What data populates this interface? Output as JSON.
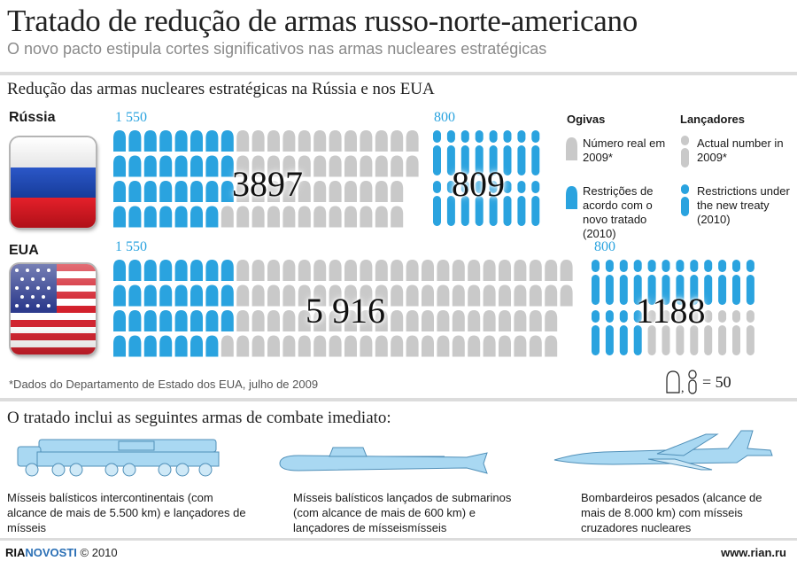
{
  "title": "Tratado de redução de armas russo-norte-americano",
  "subtitle": "O novo pacto estipula cortes significativos nas armas nucleares estratégicas",
  "section1_title": "Redução das armas nucleares estratégicas na Rússia e nos EUA",
  "russia": {
    "label": "Rússia",
    "warheads_limit_label": "1 550",
    "warheads_actual_label": "3897",
    "launchers_limit_label": "800",
    "launchers_actual_label": "809",
    "warheads_limit": 1550,
    "warheads_actual": 3897,
    "launchers_limit": 800,
    "launchers_actual": 809
  },
  "usa": {
    "label": "EUA",
    "warheads_limit_label": "1 550",
    "warheads_actual_label": "5 916",
    "launchers_limit_label": "800",
    "launchers_actual_label": "1188",
    "warheads_limit": 1550,
    "warheads_actual": 5916,
    "launchers_limit": 800,
    "launchers_actual": 1188
  },
  "legend": {
    "warheads_title": "Ogivas",
    "launchers_title": "Lançadores",
    "actual_pt": "Número real em 2009*",
    "limit_pt": "Restrições de acordo com o novo tratado (2010)",
    "actual_en": "Actual number in 2009*",
    "limit_en": "Restrictions under the new treaty (2010)",
    "scale": "= 50"
  },
  "footnote": "*Dados do Departamento de Estado dos EUA, julho de 2009",
  "section2_title": "O tratado inclui as seguintes armas de combate imediato:",
  "weapons": [
    {
      "icon": "missile-launcher-truck-icon",
      "description": "Mísseis balísticos intercontinentais (com alcance de mais de 5.500 km) e lançadores de mísseis"
    },
    {
      "icon": "submarine-icon",
      "description": "Mísseis balísticos lançados de submarinos (com alcance de mais de 600 km) e lançadores de mísseismísseis"
    },
    {
      "icon": "bomber-plane-icon",
      "description": "Bombardeiros pesados (alcance de mais de 8.000 km) com mísseis cruzadores nucleares"
    }
  ],
  "footer": {
    "logo_ria": "RIA",
    "logo_novosti": "NOVOSTI",
    "copyright": " © 2010",
    "site": "www.rian.ru"
  },
  "colors": {
    "limit": "#2aa3df",
    "actual": "#c9c9c9",
    "band": "#dcdcdc"
  },
  "units_per_icon": 50
}
